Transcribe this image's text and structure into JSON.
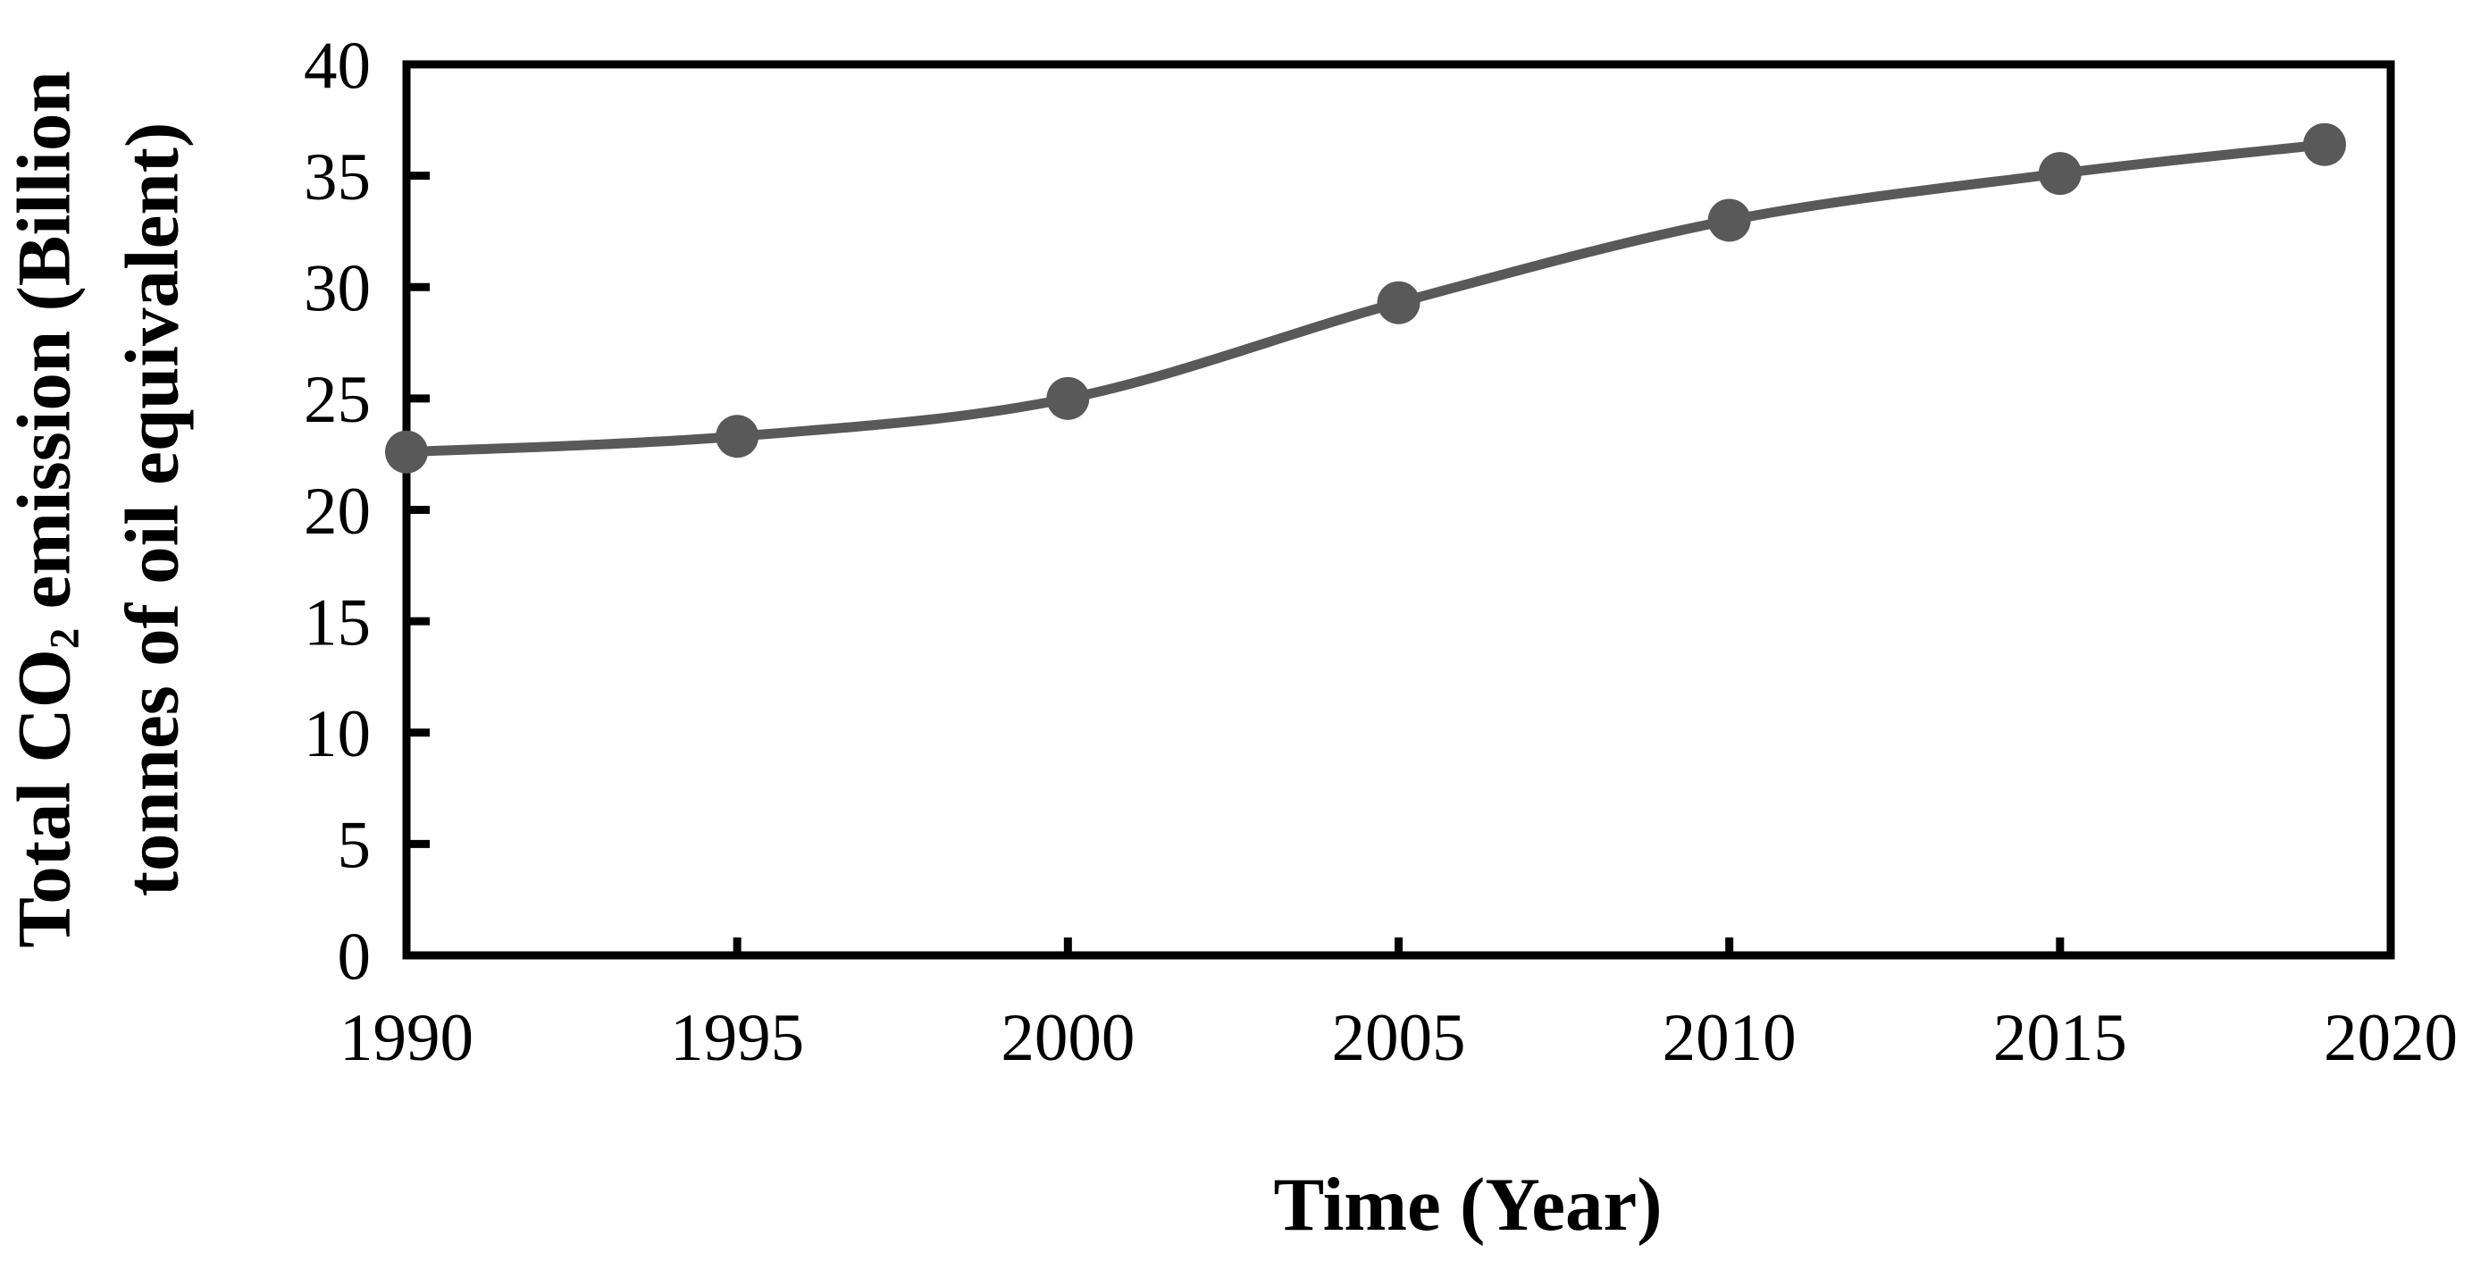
{
  "figure": {
    "background_color": "#ffffff",
    "axis_color": "#000000"
  },
  "chart_data": {
    "type": "line",
    "title": "",
    "x": [
      1990,
      1995,
      2000,
      2005,
      2010,
      2015,
      2019
    ],
    "series": [
      {
        "name": "Total CO2 emission",
        "values": [
          22.6,
          23.3,
          25.0,
          29.3,
          33.0,
          35.1,
          36.4
        ],
        "color": "#595959",
        "marker": "circle"
      }
    ],
    "xlabel": "Time (Year)",
    "ylabel": {
      "line1_pre": "Total CO",
      "line1_sub": "2",
      "line1_post": " emission (Billion",
      "line2": "tonnes of oil equivalent)"
    },
    "x_ticks": [
      1990,
      1995,
      2000,
      2005,
      2010,
      2015,
      2020
    ],
    "y_ticks": [
      0,
      5,
      10,
      15,
      20,
      25,
      30,
      35,
      40
    ],
    "xlim": [
      1990,
      2020
    ],
    "ylim": [
      0,
      40
    ],
    "grid": false,
    "legend": "none",
    "smooth": true,
    "frame": "box"
  }
}
